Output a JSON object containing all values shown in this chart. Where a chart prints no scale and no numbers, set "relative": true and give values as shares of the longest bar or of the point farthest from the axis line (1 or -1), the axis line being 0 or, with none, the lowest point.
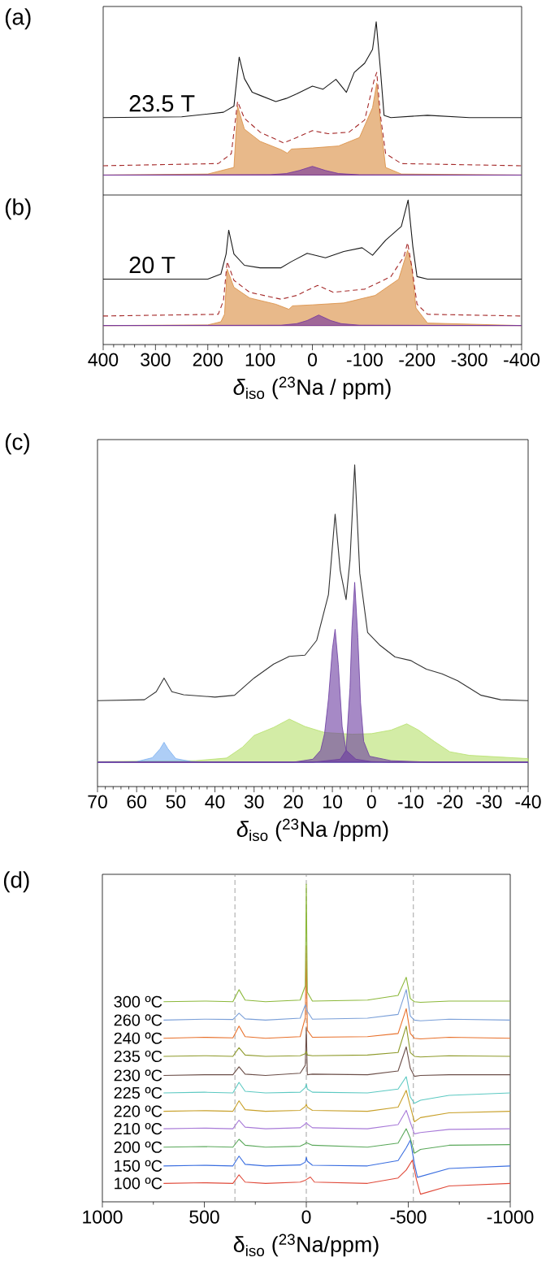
{
  "chart_data": [
    {
      "type": "line",
      "title": "(a)",
      "annotations": [
        "23.5 T"
      ],
      "relative": true,
      "xlim": [
        400,
        -400
      ],
      "tick_labels": false,
      "series": [
        {
          "type": "area",
          "color": "#d98a3c",
          "x": [
            400,
            200,
            150,
            143,
            130,
            100,
            60,
            48,
            40,
            0,
            -50,
            -90,
            -115,
            -123,
            -130,
            -140,
            -170,
            -400
          ],
          "values": [
            0,
            0.007,
            0.05,
            0.45,
            0.3,
            0.22,
            0.166,
            0.143,
            0.17,
            0.177,
            0.19,
            0.245,
            0.44,
            0.6,
            0.35,
            0.05,
            0.007,
            0
          ]
        },
        {
          "type": "area",
          "color": "#7030a0",
          "x": [
            400,
            80,
            50,
            25,
            0,
            -25,
            -50,
            -90,
            -400
          ],
          "values": [
            0,
            0.003,
            0.01,
            0.03,
            0.057,
            0.03,
            0.01,
            0.002,
            0
          ]
        },
        {
          "type": "line",
          "color": "#a52a2a",
          "line_style": "dashed",
          "x": [
            400,
            180,
            155,
            143,
            130,
            100,
            55,
            30,
            0,
            -30,
            -70,
            -100,
            -118,
            -123,
            -130,
            -140,
            -170,
            -400
          ],
          "values": [
            0.061,
            0.075,
            0.14,
            0.48,
            0.37,
            0.28,
            0.21,
            0.245,
            0.29,
            0.27,
            0.28,
            0.36,
            0.62,
            0.67,
            0.39,
            0.14,
            0.075,
            0.061
          ]
        },
        {
          "type": "line",
          "color": "#1a1a1a",
          "x": [
            400,
            250,
            170,
            150,
            140,
            130,
            115,
            100,
            70,
            50,
            30,
            0,
            -20,
            -45,
            -65,
            -80,
            -100,
            -115,
            -122,
            -130,
            -137,
            -150,
            -220,
            -300,
            -400
          ],
          "values": [
            0.375,
            0.38,
            0.41,
            0.45,
            0.77,
            0.63,
            0.54,
            0.52,
            0.48,
            0.5,
            0.53,
            0.58,
            0.56,
            0.625,
            0.54,
            0.67,
            0.73,
            0.82,
            1.0,
            0.69,
            0.39,
            0.375,
            0.39,
            0.375,
            0.375
          ]
        }
      ]
    },
    {
      "type": "line",
      "title": "(b)",
      "annotations": [
        "20 T"
      ],
      "xlabel": "*δ*$_{iso}$ ($^{23}$Na / ppm)",
      "relative": true,
      "xlim": [
        400,
        -400
      ],
      "xticks": [
        400,
        300,
        200,
        100,
        0,
        -100,
        -200,
        -300,
        -400
      ],
      "tick_labels": "x",
      "series": [
        {
          "type": "area",
          "color": "#d98a3c",
          "x": [
            400,
            200,
            175,
            168,
            163,
            150,
            120,
            70,
            45,
            38,
            0,
            -60,
            -120,
            -165,
            -182,
            -190,
            -198,
            -220,
            -400
          ],
          "values": [
            0,
            0.005,
            0.03,
            0.09,
            0.45,
            0.305,
            0.22,
            0.17,
            0.13,
            0.157,
            0.165,
            0.18,
            0.24,
            0.37,
            0.6,
            0.47,
            0.14,
            0.02,
            0
          ]
        },
        {
          "type": "area",
          "color": "#7030a0",
          "x": [
            400,
            60,
            30,
            10,
            -12,
            -35,
            -55,
            -90,
            -400
          ],
          "values": [
            0,
            0.003,
            0.015,
            0.04,
            0.084,
            0.04,
            0.015,
            0.003,
            0
          ]
        },
        {
          "type": "line",
          "color": "#a52a2a",
          "line_style": "dashed",
          "x": [
            400,
            180,
            170,
            163,
            150,
            120,
            60,
            30,
            -10,
            -40,
            -100,
            -150,
            -175,
            -182,
            -190,
            -200,
            -220,
            -400
          ],
          "values": [
            0.076,
            0.09,
            0.2,
            0.51,
            0.36,
            0.265,
            0.21,
            0.24,
            0.32,
            0.265,
            0.29,
            0.39,
            0.55,
            0.66,
            0.47,
            0.17,
            0.09,
            0.076
          ]
        },
        {
          "type": "line",
          "color": "#1a1a1a",
          "x": [
            400,
            200,
            175,
            165,
            160,
            150,
            130,
            100,
            60,
            40,
            10,
            -25,
            -60,
            -95,
            -115,
            -140,
            -170,
            -183,
            -192,
            -200,
            -220,
            -400
          ],
          "values": [
            0.37,
            0.37,
            0.41,
            0.57,
            0.76,
            0.57,
            0.48,
            0.46,
            0.46,
            0.51,
            0.576,
            0.54,
            0.59,
            0.62,
            0.56,
            0.68,
            0.79,
            1.0,
            0.63,
            0.39,
            0.37,
            0.37
          ]
        }
      ]
    },
    {
      "type": "line",
      "title": "(c)",
      "xlabel": "*δ*$_{iso}$ ($^{23}$Na /ppm)",
      "relative": true,
      "xlim": [
        70,
        -40
      ],
      "xticks": [
        70,
        60,
        50,
        40,
        30,
        20,
        10,
        0,
        -10,
        -20,
        -30,
        -40
      ],
      "series": [
        {
          "type": "area",
          "color": "#b5e06a",
          "x": [
            70,
            45,
            37,
            33,
            30,
            25,
            21,
            17,
            12,
            5,
            0,
            -5,
            -9,
            -12,
            -16,
            -20,
            -25,
            -40
          ],
          "values": [
            0.002,
            0.005,
            0.014,
            0.05,
            0.09,
            0.117,
            0.145,
            0.12,
            0.1,
            0.094,
            0.096,
            0.108,
            0.129,
            0.108,
            0.07,
            0.035,
            0.023,
            0.012
          ]
        },
        {
          "type": "area",
          "color": "#78aef0",
          "x": [
            70,
            60,
            56,
            54,
            53,
            52,
            50,
            46,
            40,
            -40
          ],
          "values": [
            0,
            0.002,
            0.015,
            0.045,
            0.067,
            0.045,
            0.012,
            0.002,
            0,
            0
          ]
        },
        {
          "type": "area",
          "color": "#6a3aa0",
          "x": [
            70,
            20,
            15,
            13,
            12,
            11,
            10,
            9.3,
            8.5,
            7.5,
            6.5,
            4,
            0,
            -5,
            -40
          ],
          "values": [
            0,
            0,
            0.01,
            0.04,
            0.096,
            0.213,
            0.38,
            0.447,
            0.33,
            0.12,
            0.04,
            0.01,
            0.002,
            0,
            0
          ]
        },
        {
          "type": "area",
          "color": "#6a3aa0",
          "x": [
            70,
            15,
            8,
            6.5,
            5.5,
            5,
            4.3,
            3.5,
            2.8,
            2,
            0.5,
            -5,
            -15,
            -40
          ],
          "values": [
            0,
            0,
            0.01,
            0.04,
            0.25,
            0.45,
            0.605,
            0.42,
            0.2,
            0.07,
            0.02,
            0.005,
            0,
            0
          ]
        },
        {
          "type": "line",
          "color": "#333333",
          "x": [
            70,
            58,
            55,
            53,
            51,
            48,
            40,
            35,
            30,
            25,
            21,
            17,
            14,
            11,
            9.3,
            8,
            6.5,
            5.5,
            4.3,
            3,
            1,
            -2,
            -6,
            -10,
            -14,
            -18,
            -22,
            -28,
            -33,
            -40
          ],
          "values": [
            0.207,
            0.21,
            0.237,
            0.283,
            0.237,
            0.227,
            0.219,
            0.225,
            0.283,
            0.33,
            0.356,
            0.36,
            0.41,
            0.564,
            0.834,
            0.646,
            0.547,
            0.68,
            1.0,
            0.635,
            0.436,
            0.395,
            0.354,
            0.342,
            0.313,
            0.297,
            0.274,
            0.225,
            0.21,
            0.207
          ]
        }
      ]
    },
    {
      "type": "line",
      "title": "(d)",
      "xlabel": "δ$_{iso}$ ($^{23}$Na/ppm)",
      "relative": true,
      "xlim": [
        1000,
        -1000
      ],
      "xticks": [
        1000,
        500,
        0,
        -500,
        -1000
      ],
      "ref_lines": [
        {
          "axis": "x",
          "value": 350,
          "color": "#999999",
          "line_style": "dashed"
        },
        {
          "axis": "x",
          "value": 0,
          "color": "#999999",
          "line_style": "dashed"
        },
        {
          "axis": "x",
          "value": -525,
          "color": "#999999",
          "line_style": "dashed"
        }
      ],
      "series": [
        {
          "name": "300 ºC",
          "color": "#8cb83a",
          "x": [
            700,
            500,
            360,
            330,
            300,
            200,
            30,
            5,
            0,
            -5,
            -30,
            -300,
            -450,
            -490,
            -510,
            -530,
            -560,
            -700,
            -1000
          ],
          "values": [
            0.63,
            0.632,
            0.63,
            0.668,
            0.635,
            0.63,
            0.635,
            0.68,
            1.0,
            0.66,
            0.632,
            0.635,
            0.65,
            0.707,
            0.64,
            0.63,
            0.628,
            0.632,
            0.632
          ]
        },
        {
          "name": "260 ºC",
          "color": "#7a9fd8",
          "x": [
            700,
            500,
            360,
            330,
            300,
            200,
            30,
            5,
            0,
            -5,
            -30,
            -300,
            -450,
            -490,
            -510,
            -530,
            -560,
            -700,
            -1000
          ],
          "values": [
            0.572,
            0.575,
            0.574,
            0.594,
            0.576,
            0.572,
            0.578,
            0.62,
            null,
            0.6,
            0.575,
            0.578,
            0.59,
            0.668,
            0.585,
            0.572,
            0.57,
            0.575,
            0.572
          ]
        },
        {
          "name": "240 ºC",
          "color": "#e8702a",
          "x": [
            700,
            500,
            360,
            330,
            300,
            200,
            30,
            5,
            0,
            -5,
            -30,
            -300,
            -450,
            -490,
            -510,
            -530,
            -560,
            -700,
            -1000
          ],
          "values": [
            0.515,
            0.518,
            0.516,
            0.553,
            0.52,
            0.515,
            0.52,
            0.58,
            0.805,
            0.54,
            0.518,
            0.52,
            0.53,
            0.608,
            0.53,
            0.515,
            0.513,
            0.518,
            0.515
          ]
        },
        {
          "name": "235 ºC",
          "color": "#8e9a2a",
          "x": [
            700,
            500,
            360,
            330,
            300,
            200,
            30,
            5,
            0,
            -5,
            -30,
            -300,
            -450,
            -490,
            -510,
            -530,
            -560,
            -700,
            -1000
          ],
          "values": [
            0.458,
            0.46,
            0.458,
            0.485,
            0.462,
            0.458,
            0.46,
            0.466,
            0.474,
            0.462,
            0.46,
            0.462,
            0.47,
            0.553,
            0.47,
            0.458,
            0.456,
            0.46,
            0.458
          ]
        },
        {
          "name": "230 ºC",
          "color": "#6b4e48",
          "x": [
            700,
            500,
            360,
            330,
            300,
            200,
            30,
            5,
            0,
            -5,
            -30,
            -300,
            -450,
            -490,
            -510,
            -530,
            -560,
            -700,
            -1000
          ],
          "values": [
            0.398,
            0.4,
            0.4,
            0.425,
            0.402,
            0.398,
            0.405,
            0.43,
            0.548,
            0.4,
            0.402,
            0.4,
            0.412,
            0.488,
            0.42,
            0.395,
            0.398,
            0.4,
            0.4
          ]
        },
        {
          "name": "225 ºC",
          "color": "#5cc9c2",
          "x": [
            700,
            500,
            360,
            330,
            300,
            200,
            30,
            5,
            0,
            -5,
            -30,
            -300,
            -450,
            -490,
            -510,
            -530,
            -560,
            -700,
            -1000
          ],
          "values": [
            0.343,
            0.345,
            0.343,
            0.376,
            0.348,
            0.343,
            0.345,
            0.36,
            0.37,
            0.355,
            0.345,
            0.343,
            0.355,
            0.394,
            0.33,
            0.31,
            0.32,
            0.335,
            0.343
          ]
        },
        {
          "name": "220 ºC",
          "color": "#c8a02a",
          "x": [
            700,
            500,
            360,
            330,
            300,
            200,
            30,
            5,
            0,
            -5,
            -30,
            -300,
            -450,
            -490,
            -510,
            -530,
            -560,
            -700,
            -1000
          ],
          "values": [
            0.285,
            0.287,
            0.285,
            0.318,
            0.29,
            0.285,
            0.288,
            0.3,
            0.307,
            0.298,
            0.288,
            0.285,
            0.298,
            0.351,
            0.3,
            0.252,
            0.265,
            0.28,
            0.285
          ]
        },
        {
          "name": "210 ºC",
          "color": "#a87ad8",
          "x": [
            700,
            500,
            360,
            330,
            300,
            200,
            30,
            5,
            0,
            -5,
            -30,
            -300,
            -450,
            -490,
            -510,
            -530,
            -560,
            -700,
            -1000
          ],
          "values": [
            0.23,
            0.232,
            0.23,
            0.257,
            0.235,
            0.23,
            0.233,
            0.245,
            0.25,
            0.245,
            0.233,
            0.23,
            0.243,
            0.288,
            0.25,
            0.214,
            0.218,
            0.228,
            0.23
          ]
        },
        {
          "name": "200 ºC",
          "color": "#5aa85a",
          "x": [
            700,
            500,
            360,
            330,
            300,
            200,
            30,
            5,
            0,
            -5,
            -30,
            -300,
            -450,
            -490,
            -510,
            -530,
            -560,
            -700,
            -1000
          ],
          "values": [
            0.172,
            0.174,
            0.172,
            0.197,
            0.178,
            0.172,
            0.175,
            0.183,
            0.187,
            0.185,
            0.178,
            0.172,
            0.185,
            0.23,
            0.2,
            0.153,
            0.165,
            0.178,
            0.18
          ]
        },
        {
          "name": "150 ºC",
          "color": "#3a6ee0",
          "x": [
            700,
            500,
            360,
            330,
            300,
            200,
            30,
            5,
            0,
            -5,
            -30,
            -300,
            -450,
            -490,
            -510,
            -530,
            -545,
            -700,
            -1000
          ],
          "values": [
            0.113,
            0.115,
            0.113,
            0.144,
            0.118,
            0.113,
            0.116,
            0.125,
            0.14,
            0.128,
            0.115,
            0.113,
            0.13,
            0.17,
            0.194,
            0.12,
            0.077,
            0.105,
            0.113
          ]
        },
        {
          "name": "100 ºC",
          "color": "#e04a3a",
          "x": [
            700,
            500,
            360,
            330,
            300,
            200,
            30,
            5,
            0,
            -20,
            -40,
            -300,
            -450,
            -490,
            -520,
            -540,
            -560,
            -700,
            -1000
          ],
          "values": [
            0.058,
            0.06,
            0.058,
            0.085,
            0.062,
            0.058,
            0.062,
            0.068,
            0.07,
            0.078,
            0.062,
            0.058,
            0.075,
            0.1,
            0.131,
            0.07,
            0.024,
            0.05,
            0.058
          ]
        }
      ]
    }
  ]
}
